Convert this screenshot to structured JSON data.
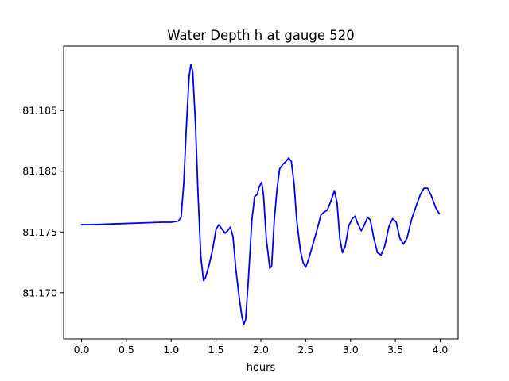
{
  "chart_data": {
    "type": "line",
    "title": "Water Depth h at gauge 520",
    "xlabel": "hours",
    "ylabel": "",
    "xlim": [
      -0.2,
      4.2
    ],
    "ylim": [
      81.1662,
      81.1903
    ],
    "xticks": [
      0.0,
      0.5,
      1.0,
      1.5,
      2.0,
      2.5,
      3.0,
      3.5,
      4.0
    ],
    "xtick_labels": [
      "0.0",
      "0.5",
      "1.0",
      "1.5",
      "2.0",
      "2.5",
      "3.0",
      "3.5",
      "4.0"
    ],
    "yticks": [
      81.17,
      81.175,
      81.18,
      81.185
    ],
    "ytick_labels": [
      "81.170",
      "81.175",
      "81.180",
      "81.185"
    ],
    "grid": false,
    "legend": "none",
    "series": [
      {
        "color": "#0000ff",
        "points": [
          [
            0.0,
            81.1756
          ],
          [
            0.02,
            81.1756
          ],
          [
            0.1,
            81.1756
          ],
          [
            0.3,
            81.17565
          ],
          [
            0.5,
            81.1757
          ],
          [
            0.7,
            81.17575
          ],
          [
            0.9,
            81.1758
          ],
          [
            1.0,
            81.1758
          ],
          [
            1.08,
            81.1759
          ],
          [
            1.11,
            81.1762
          ],
          [
            1.14,
            81.179
          ],
          [
            1.17,
            81.1838
          ],
          [
            1.2,
            81.1878
          ],
          [
            1.22,
            81.1888
          ],
          [
            1.24,
            81.1882
          ],
          [
            1.27,
            81.184
          ],
          [
            1.3,
            81.178
          ],
          [
            1.33,
            81.173
          ],
          [
            1.36,
            81.171
          ],
          [
            1.38,
            81.1712
          ],
          [
            1.42,
            81.1722
          ],
          [
            1.46,
            81.1735
          ],
          [
            1.5,
            81.1752
          ],
          [
            1.53,
            81.1756
          ],
          [
            1.57,
            81.1752
          ],
          [
            1.6,
            81.1749
          ],
          [
            1.63,
            81.1751
          ],
          [
            1.66,
            81.1754
          ],
          [
            1.69,
            81.1746
          ],
          [
            1.72,
            81.172
          ],
          [
            1.76,
            81.1695
          ],
          [
            1.79,
            81.168
          ],
          [
            1.81,
            81.1674
          ],
          [
            1.83,
            81.1678
          ],
          [
            1.86,
            81.171
          ],
          [
            1.9,
            81.176
          ],
          [
            1.93,
            81.1779
          ],
          [
            1.96,
            81.1781
          ],
          [
            1.98,
            81.1787
          ],
          [
            2.01,
            81.1791
          ],
          [
            2.03,
            81.178
          ],
          [
            2.06,
            81.1745
          ],
          [
            2.1,
            81.172
          ],
          [
            2.12,
            81.1722
          ],
          [
            2.15,
            81.176
          ],
          [
            2.18,
            81.1785
          ],
          [
            2.21,
            81.1802
          ],
          [
            2.25,
            81.1806
          ],
          [
            2.28,
            81.1808
          ],
          [
            2.31,
            81.1811
          ],
          [
            2.34,
            81.1808
          ],
          [
            2.37,
            81.179
          ],
          [
            2.4,
            81.176
          ],
          [
            2.44,
            81.1735
          ],
          [
            2.47,
            81.1725
          ],
          [
            2.5,
            81.1721
          ],
          [
            2.53,
            81.1727
          ],
          [
            2.57,
            81.1737
          ],
          [
            2.62,
            81.175
          ],
          [
            2.67,
            81.1764
          ],
          [
            2.7,
            81.1766
          ],
          [
            2.74,
            81.1768
          ],
          [
            2.78,
            81.1775
          ],
          [
            2.82,
            81.1784
          ],
          [
            2.85,
            81.1774
          ],
          [
            2.88,
            81.1745
          ],
          [
            2.91,
            81.1733
          ],
          [
            2.94,
            81.1738
          ],
          [
            2.98,
            81.1755
          ],
          [
            3.02,
            81.1761
          ],
          [
            3.05,
            81.1763
          ],
          [
            3.08,
            81.1757
          ],
          [
            3.12,
            81.1751
          ],
          [
            3.15,
            81.1755
          ],
          [
            3.19,
            81.1762
          ],
          [
            3.22,
            81.176
          ],
          [
            3.26,
            81.1745
          ],
          [
            3.3,
            81.1733
          ],
          [
            3.34,
            81.1731
          ],
          [
            3.38,
            81.1738
          ],
          [
            3.43,
            81.1755
          ],
          [
            3.47,
            81.1761
          ],
          [
            3.51,
            81.1758
          ],
          [
            3.55,
            81.1745
          ],
          [
            3.59,
            81.174
          ],
          [
            3.63,
            81.1745
          ],
          [
            3.68,
            81.176
          ],
          [
            3.73,
            81.1771
          ],
          [
            3.78,
            81.1781
          ],
          [
            3.82,
            81.1786
          ],
          [
            3.86,
            81.1786
          ],
          [
            3.9,
            81.178
          ],
          [
            3.95,
            81.177
          ],
          [
            3.99,
            81.1765
          ]
        ]
      }
    ]
  }
}
